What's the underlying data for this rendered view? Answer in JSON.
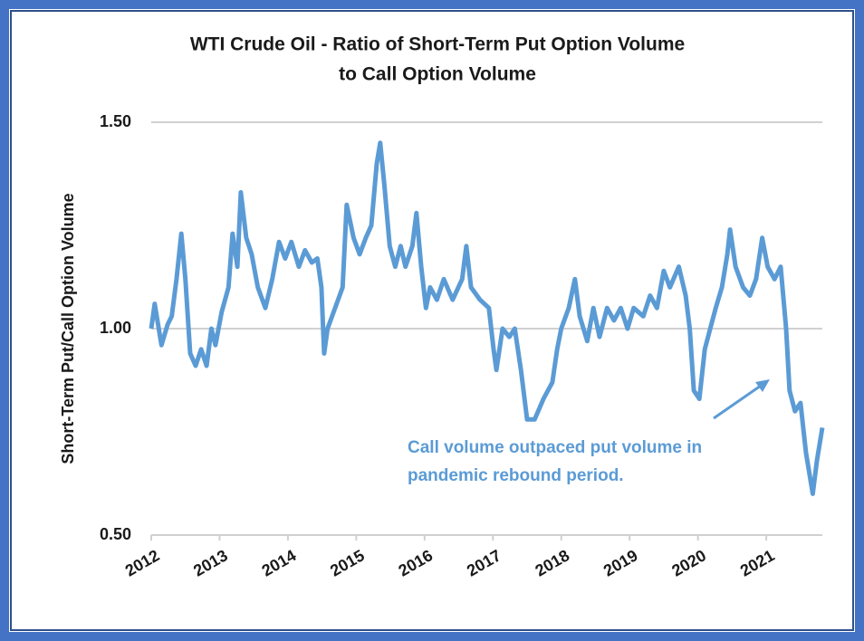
{
  "chart_data": {
    "type": "line",
    "title": [
      "WTI Crude Oil - Ratio of Short-Term Put Option Volume",
      "to Call Option Volume"
    ],
    "y_label": "Short-Term Put/Call Option Volume",
    "annotation": [
      "Call volume outpaced put volume in",
      "pandemic rebound period."
    ],
    "xlim": [
      2012,
      2021.82
    ],
    "xticks": [
      2012,
      2013,
      2014,
      2015,
      2016,
      2017,
      2018,
      2019,
      2020,
      2021
    ],
    "ylim": [
      0.5,
      1.5
    ],
    "yticks": [
      {
        "value": 0.5,
        "label": "0.50"
      },
      {
        "value": 1.0,
        "label": "1.00"
      },
      {
        "value": 1.5,
        "label": "1.50"
      }
    ],
    "grid": true,
    "series": [
      {
        "color": "#5b9bd5",
        "x": [
          2012.0,
          2012.05,
          2012.15,
          2012.24,
          2012.3,
          2012.37,
          2012.44,
          2012.5,
          2012.57,
          2012.65,
          2012.73,
          2012.81,
          2012.88,
          2012.94,
          2013.03,
          2013.13,
          2013.19,
          2013.26,
          2013.31,
          2013.39,
          2013.47,
          2013.56,
          2013.67,
          2013.77,
          2013.87,
          2013.96,
          2014.05,
          2014.16,
          2014.25,
          2014.35,
          2014.43,
          2014.49,
          2014.53,
          2014.58,
          2014.69,
          2014.8,
          2014.86,
          2014.96,
          2015.05,
          2015.14,
          2015.22,
          2015.3,
          2015.35,
          2015.41,
          2015.49,
          2015.57,
          2015.65,
          2015.72,
          2015.82,
          2015.88,
          2015.95,
          2016.02,
          2016.08,
          2016.18,
          2016.28,
          2016.41,
          2016.55,
          2016.61,
          2016.68,
          2016.81,
          2016.94,
          2017.01,
          2017.05,
          2017.14,
          2017.24,
          2017.32,
          2017.41,
          2017.5,
          2017.61,
          2017.74,
          2017.87,
          2017.94,
          2018.0,
          2018.11,
          2018.2,
          2018.27,
          2018.38,
          2018.47,
          2018.56,
          2018.67,
          2018.77,
          2018.87,
          2018.97,
          2019.06,
          2019.2,
          2019.3,
          2019.4,
          2019.5,
          2019.59,
          2019.72,
          2019.82,
          2019.88,
          2019.94,
          2020.02,
          2020.1,
          2020.18,
          2020.26,
          2020.35,
          2020.43,
          2020.47,
          2020.55,
          2020.66,
          2020.76,
          2020.85,
          2020.94,
          2021.02,
          2021.12,
          2021.21,
          2021.29,
          2021.34,
          2021.42,
          2021.5,
          2021.58,
          2021.68,
          2021.74,
          2021.82
        ],
        "values": [
          1.0,
          1.06,
          0.96,
          1.01,
          1.03,
          1.12,
          1.23,
          1.12,
          0.94,
          0.91,
          0.95,
          0.91,
          1.0,
          0.96,
          1.04,
          1.1,
          1.23,
          1.15,
          1.33,
          1.22,
          1.18,
          1.1,
          1.05,
          1.12,
          1.21,
          1.17,
          1.21,
          1.15,
          1.19,
          1.16,
          1.17,
          1.1,
          0.94,
          1.0,
          1.05,
          1.1,
          1.3,
          1.22,
          1.18,
          1.22,
          1.25,
          1.4,
          1.45,
          1.35,
          1.2,
          1.15,
          1.2,
          1.15,
          1.2,
          1.28,
          1.15,
          1.05,
          1.1,
          1.07,
          1.12,
          1.07,
          1.12,
          1.2,
          1.1,
          1.07,
          1.05,
          0.95,
          0.9,
          1.0,
          0.98,
          1.0,
          0.9,
          0.78,
          0.78,
          0.83,
          0.87,
          0.95,
          1.0,
          1.05,
          1.12,
          1.03,
          0.97,
          1.05,
          0.98,
          1.05,
          1.02,
          1.05,
          1.0,
          1.05,
          1.03,
          1.08,
          1.05,
          1.14,
          1.1,
          1.15,
          1.08,
          1.0,
          0.85,
          0.83,
          0.95,
          1.0,
          1.05,
          1.1,
          1.18,
          1.24,
          1.15,
          1.1,
          1.08,
          1.12,
          1.22,
          1.15,
          1.12,
          1.15,
          1.0,
          0.85,
          0.8,
          0.82,
          0.7,
          0.6,
          0.68,
          0.76
        ]
      }
    ]
  }
}
